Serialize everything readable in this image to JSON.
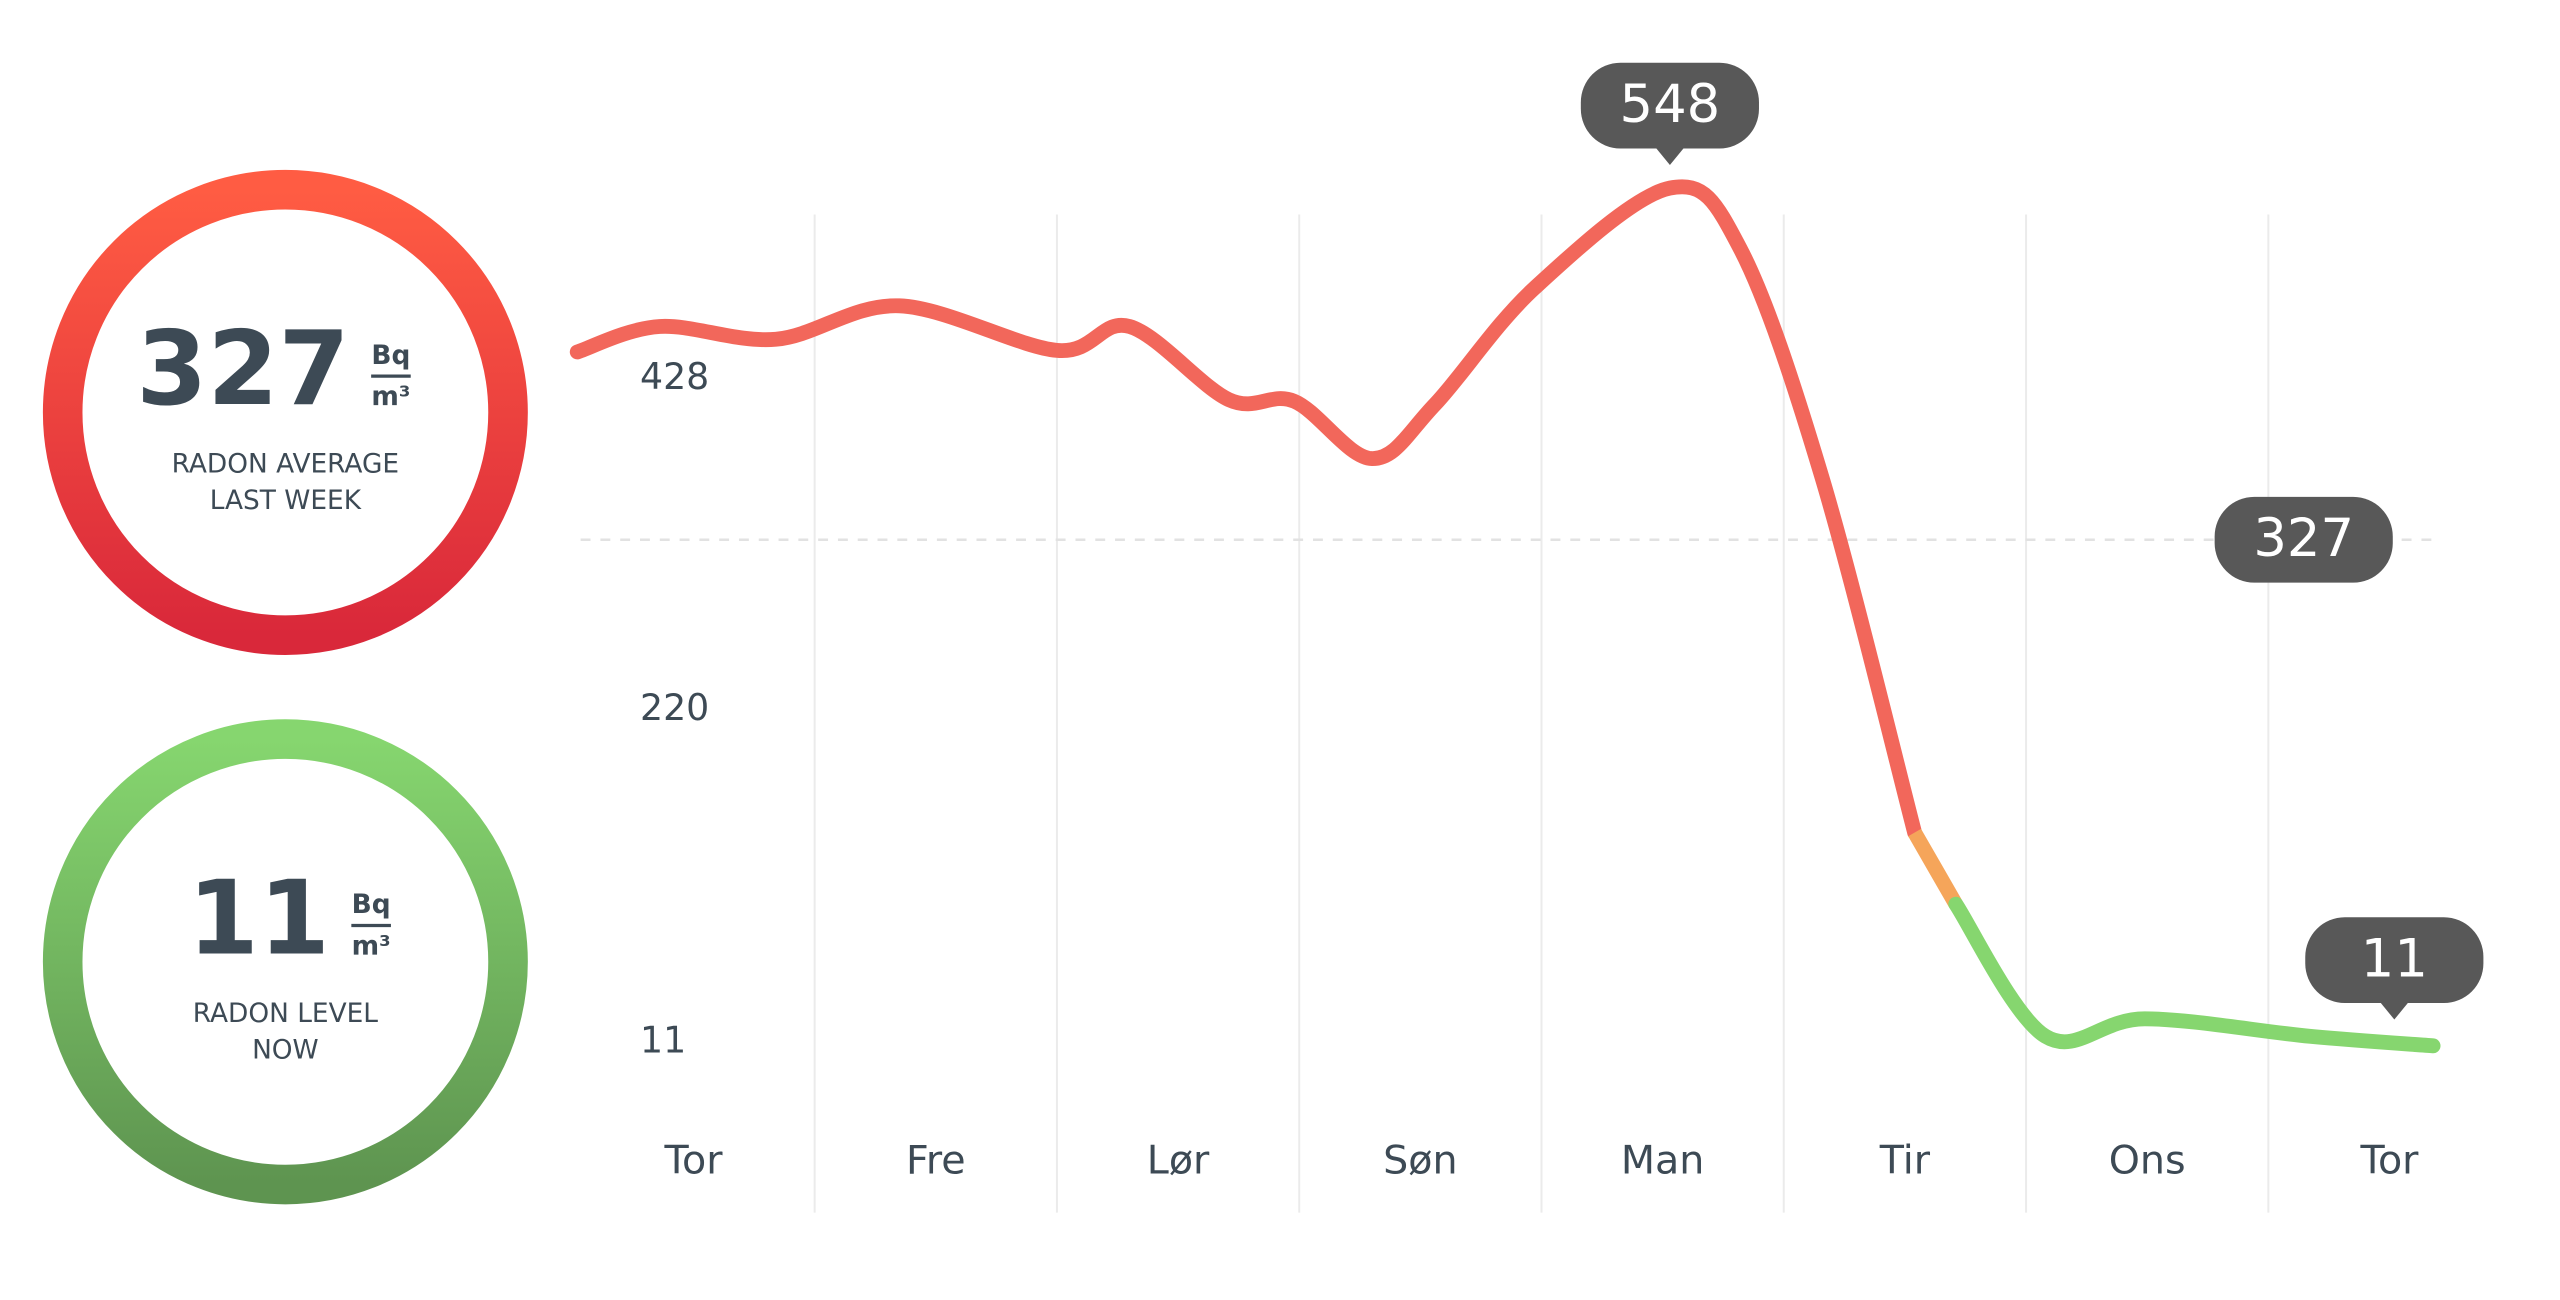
{
  "cards": [
    {
      "value": 327,
      "unit_top": "Bq",
      "unit_bottom": "m³",
      "label": [
        "RADON AVERAGE",
        "LAST WEEK"
      ],
      "colors": [
        "#ff5c43",
        "#d9283a"
      ]
    },
    {
      "value": 11,
      "unit_top": "Bq",
      "unit_bottom": "m³",
      "label": [
        "RADON LEVEL",
        "NOW"
      ],
      "colors": [
        "#86d66f",
        "#5e9450"
      ]
    }
  ],
  "chart_data": {
    "type": "line",
    "xlim": [
      -0.5,
      7.2
    ],
    "xticks": [
      {
        "value": 0,
        "label": "Tor"
      },
      {
        "value": 1,
        "label": "Fre"
      },
      {
        "value": 2,
        "label": "Lør"
      },
      {
        "value": 3,
        "label": "Søn"
      },
      {
        "value": 4,
        "label": "Man"
      },
      {
        "value": 5,
        "label": "Tir"
      },
      {
        "value": 6,
        "label": "Ons"
      },
      {
        "value": 7,
        "label": "Tor"
      }
    ],
    "ylim": [
      11,
      548
    ],
    "yticks": [
      11,
      220,
      428
    ],
    "series": [
      {
        "color": "#f2675b",
        "x": [
          -0.48,
          -0.14,
          0.34,
          0.85,
          1.5,
          1.8,
          2.21,
          2.48,
          2.8,
          3.06,
          3.47,
          4.03,
          4.32,
          4.66,
          5.04
        ],
        "values": [
          445,
          461,
          453,
          474,
          446,
          461,
          415,
          414,
          378,
          412,
          485,
          548,
          510,
          365,
          143
        ]
      },
      {
        "color": "#f5a55a",
        "x": [
          5.04,
          5.21
        ],
        "values": [
          143,
          98
        ]
      },
      {
        "color": "#86d66f",
        "x": [
          5.21,
          5.58,
          5.99,
          6.67,
          7.18
        ],
        "values": [
          98,
          15,
          26,
          15,
          9
        ]
      }
    ],
    "reference": {
      "value": 327,
      "x": 7.0
    },
    "annotations": [
      {
        "x": 4.03,
        "value": 548
      },
      {
        "x": 7.02,
        "value": 11
      }
    ]
  }
}
